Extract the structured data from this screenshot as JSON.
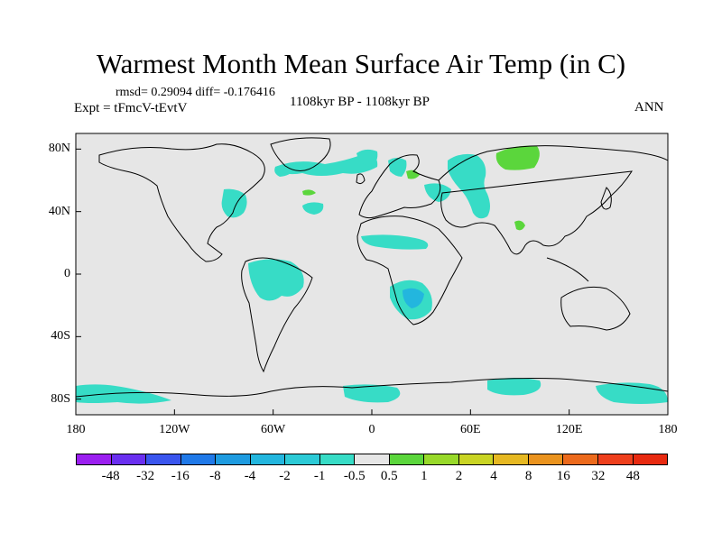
{
  "title": "Warmest Month Mean Surface Air Temp (in C)",
  "stats": "rmsd= 0.29094 diff= -0.176416",
  "expt": "Expt = tFmcV-tEvtV",
  "period": "1108kyr BP - 1108kyr BP",
  "season": "ANN",
  "lat_labels": [
    "80N",
    "40N",
    "0",
    "40S",
    "80S"
  ],
  "lon_labels": [
    "180",
    "120W",
    "60W",
    "0",
    "60E",
    "120E",
    "180"
  ],
  "colorbar": {
    "labels": [
      "-48",
      "-32",
      "-16",
      "-8",
      "-4",
      "-2",
      "-1",
      "-0.5",
      "0.5",
      "1",
      "2",
      "4",
      "8",
      "16",
      "32",
      "48"
    ],
    "colors": [
      "#9b1ff0",
      "#6a2ff0",
      "#3a55ee",
      "#2079e8",
      "#1e9be0",
      "#23b6de",
      "#2ccad6",
      "#37dcc6",
      "#e6e6e6",
      "#5bd63c",
      "#98d92a",
      "#c9d424",
      "#e6b822",
      "#ea931e",
      "#ec6a1c",
      "#ee3f1c",
      "#e82a10"
    ]
  },
  "map_colors": {
    "background": "#e6e6e6",
    "cool": "#37dcc6",
    "cool_strong": "#23b6de",
    "warm": "#5bd63c"
  }
}
